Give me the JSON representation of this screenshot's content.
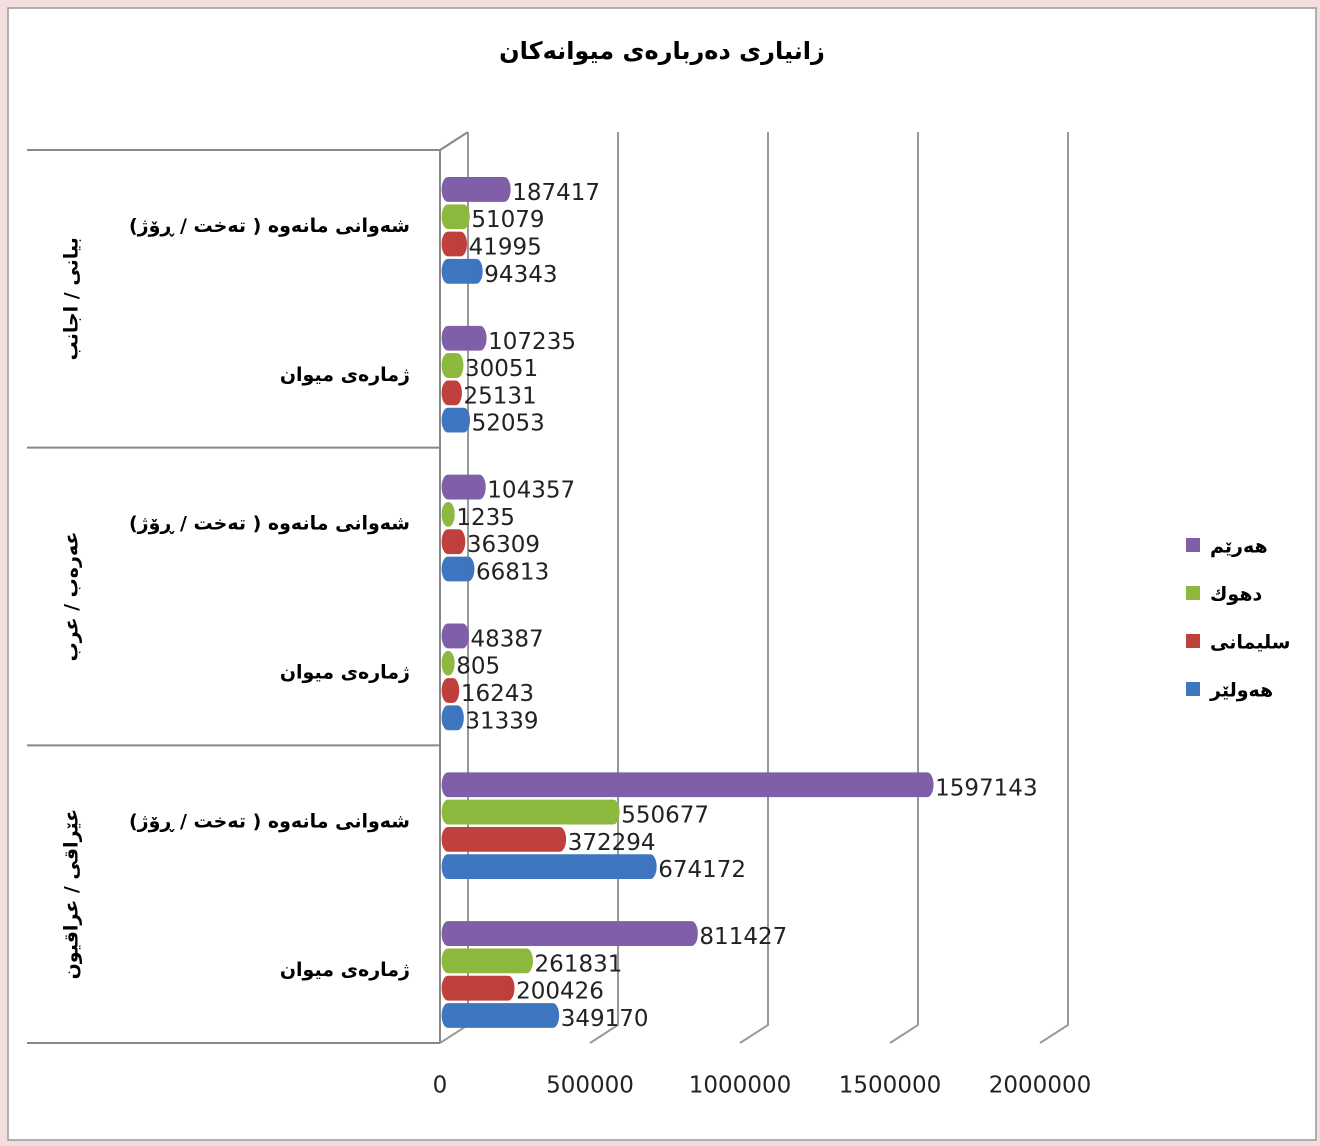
{
  "chart_data": {
    "type": "bar",
    "orientation": "horizontal",
    "title": "زانیاری دەربارەی میوانەکان",
    "groups": [
      "بیانی / اجانب",
      "عەرەب / عرب",
      "عێراقی / عراقيون"
    ],
    "categories": [
      "شەوانی مانەوە ( تەخت / ڕۆژ)",
      "ژمارەی میوان",
      "شەوانی مانەوە ( تەخت / ڕۆژ)",
      "ژمارەی میوان",
      "شەوانی مانەوە ( تەخت / ڕۆژ)",
      "ژمارەی میوان"
    ],
    "series": [
      {
        "name": "هەرێم",
        "color": "#7f5fa8",
        "values": [
          187417,
          107235,
          104357,
          48387,
          1597143,
          811427
        ]
      },
      {
        "name": "دهوك",
        "color": "#8db83e",
        "values": [
          51079,
          30051,
          1235,
          805,
          550677,
          261831
        ]
      },
      {
        "name": "سلیمانی",
        "color": "#c0403c",
        "values": [
          41995,
          25131,
          36309,
          16243,
          372294,
          200426
        ]
      },
      {
        "name": "هەولێر",
        "color": "#3f76c0",
        "values": [
          94343,
          52053,
          66813,
          31339,
          674172,
          349170
        ]
      }
    ],
    "xlim": [
      0,
      2000000
    ],
    "xticks": [
      0,
      500000,
      1000000,
      1500000,
      2000000
    ],
    "grid": true,
    "legend": "right"
  }
}
